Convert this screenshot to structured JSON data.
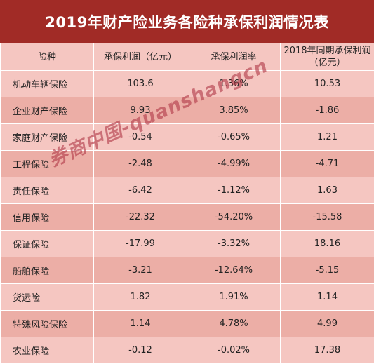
{
  "title": "2019年财产险业务各险种承保利润情况表",
  "headers": [
    "险种",
    "承保利润（亿元）",
    "承保利润率",
    "2018年同期承保利润（亿元）"
  ],
  "rows": [
    {
      "name": "机动车辆保险",
      "profit": "103.6",
      "rate": "1.36%",
      "prev": "10.53"
    },
    {
      "name": "企业财产保险",
      "profit": "9.93",
      "rate": "3.85%",
      "prev": "-1.86"
    },
    {
      "name": "家庭财产保险",
      "profit": "-0.54",
      "rate": "-0.65%",
      "prev": "1.21"
    },
    {
      "name": "工程保险",
      "profit": "-2.48",
      "rate": "-4.99%",
      "prev": "-4.71"
    },
    {
      "name": "责任保险",
      "profit": "-6.42",
      "rate": "-1.12%",
      "prev": "1.63"
    },
    {
      "name": "信用保险",
      "profit": "-22.32",
      "rate": "-54.20%",
      "prev": "-15.58"
    },
    {
      "name": "保证保险",
      "profit": "-17.99",
      "rate": "-3.32%",
      "prev": "18.16"
    },
    {
      "name": "船舶保险",
      "profit": "-3.21",
      "rate": "-12.64%",
      "prev": "-5.15"
    },
    {
      "name": "货运险",
      "profit": "1.82",
      "rate": "1.91%",
      "prev": "1.14"
    },
    {
      "name": "特殊风险保险",
      "profit": "1.14",
      "rate": "4.78%",
      "prev": "4.99"
    },
    {
      "name": "农业保险",
      "profit": "-0.12",
      "rate": "-0.02%",
      "prev": "17.38"
    }
  ],
  "watermark": "券商中国-quanshangcn",
  "colors": {
    "title_bg": "#a12b26",
    "row_light": "#f5c6c1",
    "row_dark": "#ecaea6",
    "watermark": "#b23a48"
  }
}
